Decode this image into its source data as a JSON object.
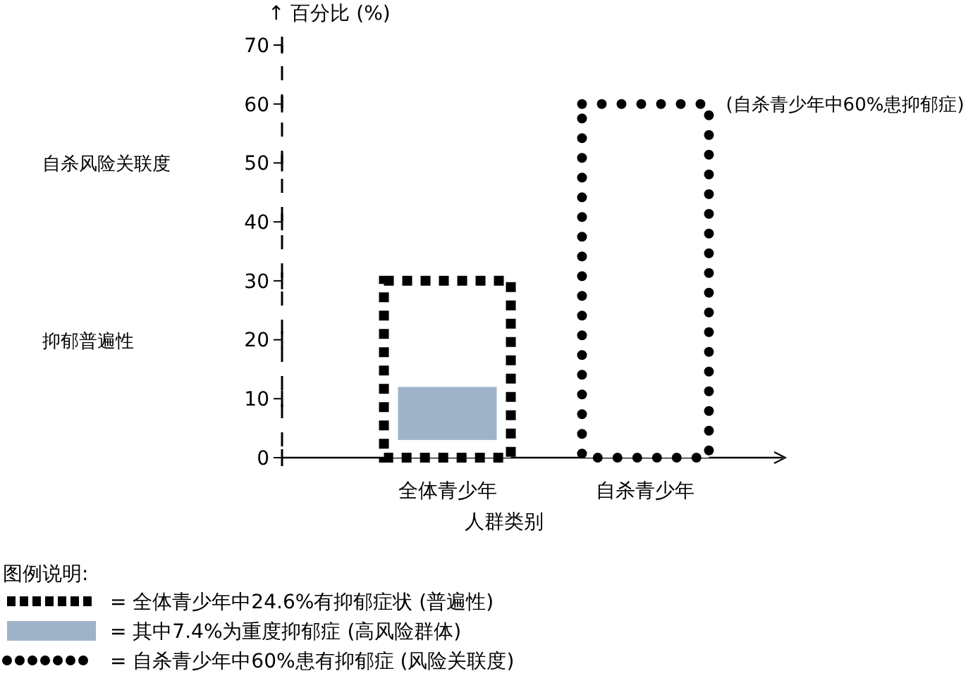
{
  "chart_data": {
    "type": "bar",
    "ylabel": "↑ 百分比 (%)",
    "xlabel": "人群类别",
    "legend_title": "图例说明:",
    "categories": [
      "全体青少年",
      "自杀青少年"
    ],
    "series": [
      {
        "name": "= 全体青少年中24.6%有抑郁症状 (普遍性)",
        "color": "#000000",
        "marker": "square",
        "values": [
          30,
          null
        ]
      },
      {
        "name": "= 其中7.4%为重度抑郁症 (高风险群体)",
        "color": "#9fb3c8",
        "base": [
          3,
          null
        ],
        "values": [
          9,
          null
        ]
      },
      {
        "name": "= 自杀青少年中60%患有抑郁症 (风险关联度)",
        "color": "#000000",
        "marker": "circle",
        "values": [
          null,
          60
        ]
      }
    ],
    "ylim": [
      0,
      70
    ],
    "yticks": [
      0,
      10,
      20,
      30,
      40,
      50,
      60,
      70
    ],
    "grid": false,
    "legend": "bottom left",
    "annotations": [
      "自杀风险关联度",
      "抑郁普遍性",
      "(自杀青少年中60%患抑郁症)"
    ]
  }
}
